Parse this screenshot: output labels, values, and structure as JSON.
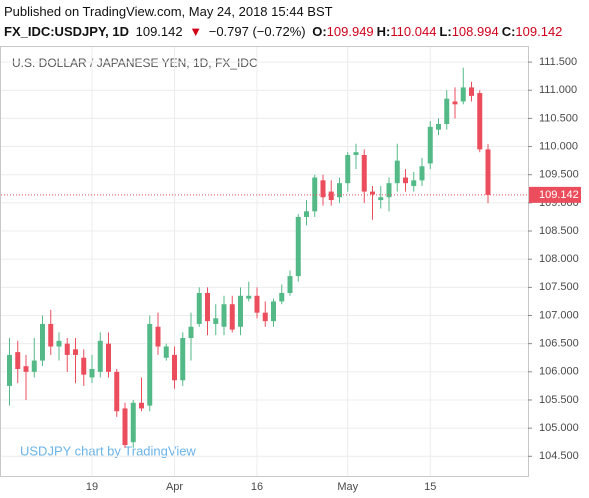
{
  "header": {
    "published": "Published on TradingView.com, May 24, 2018 15:44 BST",
    "symbol": "FX_IDC:USDJPY, 1D",
    "price": "109.142",
    "arrow": "▼",
    "change": "−0.797 (−0.72%)",
    "ohlc": [
      {
        "label": "O:",
        "value": "109.949"
      },
      {
        "label": "H:",
        "value": "110.044"
      },
      {
        "label": "L:",
        "value": "108.994"
      },
      {
        "label": "C:",
        "value": "109.142"
      }
    ]
  },
  "chart_data": {
    "type": "candlestick",
    "title": "U.S. DOLLAR / JAPANESE YEN, 1D, FX_IDC",
    "watermark": "USDJPY chart by TradingView",
    "categories": [
      null,
      null,
      null,
      null,
      null,
      null,
      null,
      null,
      null,
      null,
      "19",
      null,
      null,
      null,
      null,
      null,
      null,
      null,
      null,
      null,
      "Apr",
      null,
      null,
      null,
      null,
      null,
      null,
      null,
      null,
      null,
      "16",
      null,
      null,
      null,
      null,
      null,
      null,
      null,
      null,
      null,
      null,
      "May",
      null,
      null,
      null,
      null,
      null,
      null,
      null,
      null,
      null,
      "15",
      null,
      null,
      null,
      null,
      null,
      null,
      null
    ],
    "open": [
      105.75,
      106.35,
      106.1,
      106.0,
      106.2,
      106.85,
      106.45,
      106.5,
      106.4,
      106.25,
      105.9,
      106.0,
      106.5,
      106.0,
      105.35,
      104.75,
      105.45,
      105.4,
      106.8,
      106.25,
      106.3,
      105.85,
      106.6,
      106.85,
      107.4,
      106.85,
      106.8,
      107.2,
      106.8,
      107.3,
      107.35,
      107.05,
      106.9,
      107.25,
      107.4,
      107.7,
      108.75,
      108.85,
      109.4,
      109.2,
      109.1,
      109.35,
      109.85,
      109.85,
      109.2,
      109.05,
      109.1,
      109.35,
      109.45,
      109.3,
      109.4,
      109.7,
      110.3,
      110.4,
      110.8,
      110.8,
      111.05,
      110.95,
      109.949
    ],
    "high": [
      106.6,
      106.55,
      106.3,
      106.6,
      107.0,
      107.1,
      106.7,
      106.6,
      106.6,
      106.4,
      106.3,
      106.7,
      106.7,
      106.05,
      105.45,
      105.5,
      105.9,
      107.0,
      107.05,
      106.5,
      106.45,
      106.7,
      107.05,
      107.5,
      107.5,
      107.2,
      107.35,
      107.35,
      107.5,
      107.6,
      107.5,
      107.25,
      107.3,
      107.55,
      107.8,
      108.8,
      109.05,
      109.5,
      109.5,
      109.4,
      109.45,
      109.9,
      110.05,
      109.95,
      109.3,
      109.3,
      109.45,
      110.05,
      109.6,
      109.55,
      109.8,
      110.45,
      110.5,
      111.0,
      111.05,
      111.4,
      111.15,
      111.0,
      110.044
    ],
    "low": [
      105.4,
      105.8,
      105.5,
      105.9,
      106.1,
      106.3,
      106.2,
      106.0,
      105.8,
      105.75,
      105.8,
      105.9,
      105.9,
      105.2,
      104.65,
      104.65,
      105.3,
      105.3,
      106.3,
      106.2,
      105.7,
      105.75,
      106.2,
      106.8,
      106.65,
      106.65,
      106.65,
      106.7,
      106.65,
      107.25,
      106.95,
      106.8,
      106.8,
      107.2,
      107.35,
      107.6,
      108.6,
      108.75,
      108.95,
      108.95,
      109.0,
      109.2,
      109.6,
      109.0,
      108.7,
      108.9,
      108.85,
      109.2,
      109.2,
      109.2,
      109.3,
      109.6,
      110.2,
      110.3,
      110.5,
      110.75,
      110.8,
      109.9,
      108.994
    ],
    "close": [
      106.3,
      106.05,
      106.0,
      106.2,
      106.85,
      106.45,
      106.55,
      106.3,
      106.3,
      105.95,
      106.05,
      106.55,
      106.0,
      105.3,
      104.7,
      105.45,
      105.35,
      106.85,
      106.45,
      106.45,
      105.85,
      106.6,
      106.8,
      107.4,
      106.9,
      106.95,
      107.2,
      106.75,
      107.35,
      107.35,
      107.05,
      106.9,
      107.25,
      107.4,
      107.7,
      108.75,
      108.85,
      109.45,
      109.1,
      109.05,
      109.35,
      109.85,
      109.9,
      109.2,
      109.15,
      109.1,
      109.35,
      109.75,
      109.35,
      109.4,
      109.65,
      110.35,
      110.4,
      110.85,
      110.75,
      111.05,
      110.9,
      109.95,
      109.142
    ],
    "up_color": "#53b987",
    "down_color": "#eb4d5c",
    "last_price": {
      "value": 109.142,
      "label": "109.142"
    },
    "ylim": [
      104.15,
      111.75
    ],
    "yticks": [
      {
        "value": 104.5,
        "label": "104.500"
      },
      {
        "value": 105,
        "label": "105.000"
      },
      {
        "value": 105.5,
        "label": "105.500"
      },
      {
        "value": 106,
        "label": "106.000"
      },
      {
        "value": 106.5,
        "label": "106.500"
      },
      {
        "value": 107,
        "label": "107.000"
      },
      {
        "value": 107.5,
        "label": "107.500"
      },
      {
        "value": 108,
        "label": "108.000"
      },
      {
        "value": 108.5,
        "label": "108.500"
      },
      {
        "value": 109,
        "label": "109.000"
      },
      {
        "value": 109.5,
        "label": "109.500"
      },
      {
        "value": 110,
        "label": "110.000"
      },
      {
        "value": 110.5,
        "label": "110.500"
      },
      {
        "value": 111,
        "label": "111.000"
      },
      {
        "value": 111.5,
        "label": "111.500"
      }
    ],
    "grid": true
  }
}
